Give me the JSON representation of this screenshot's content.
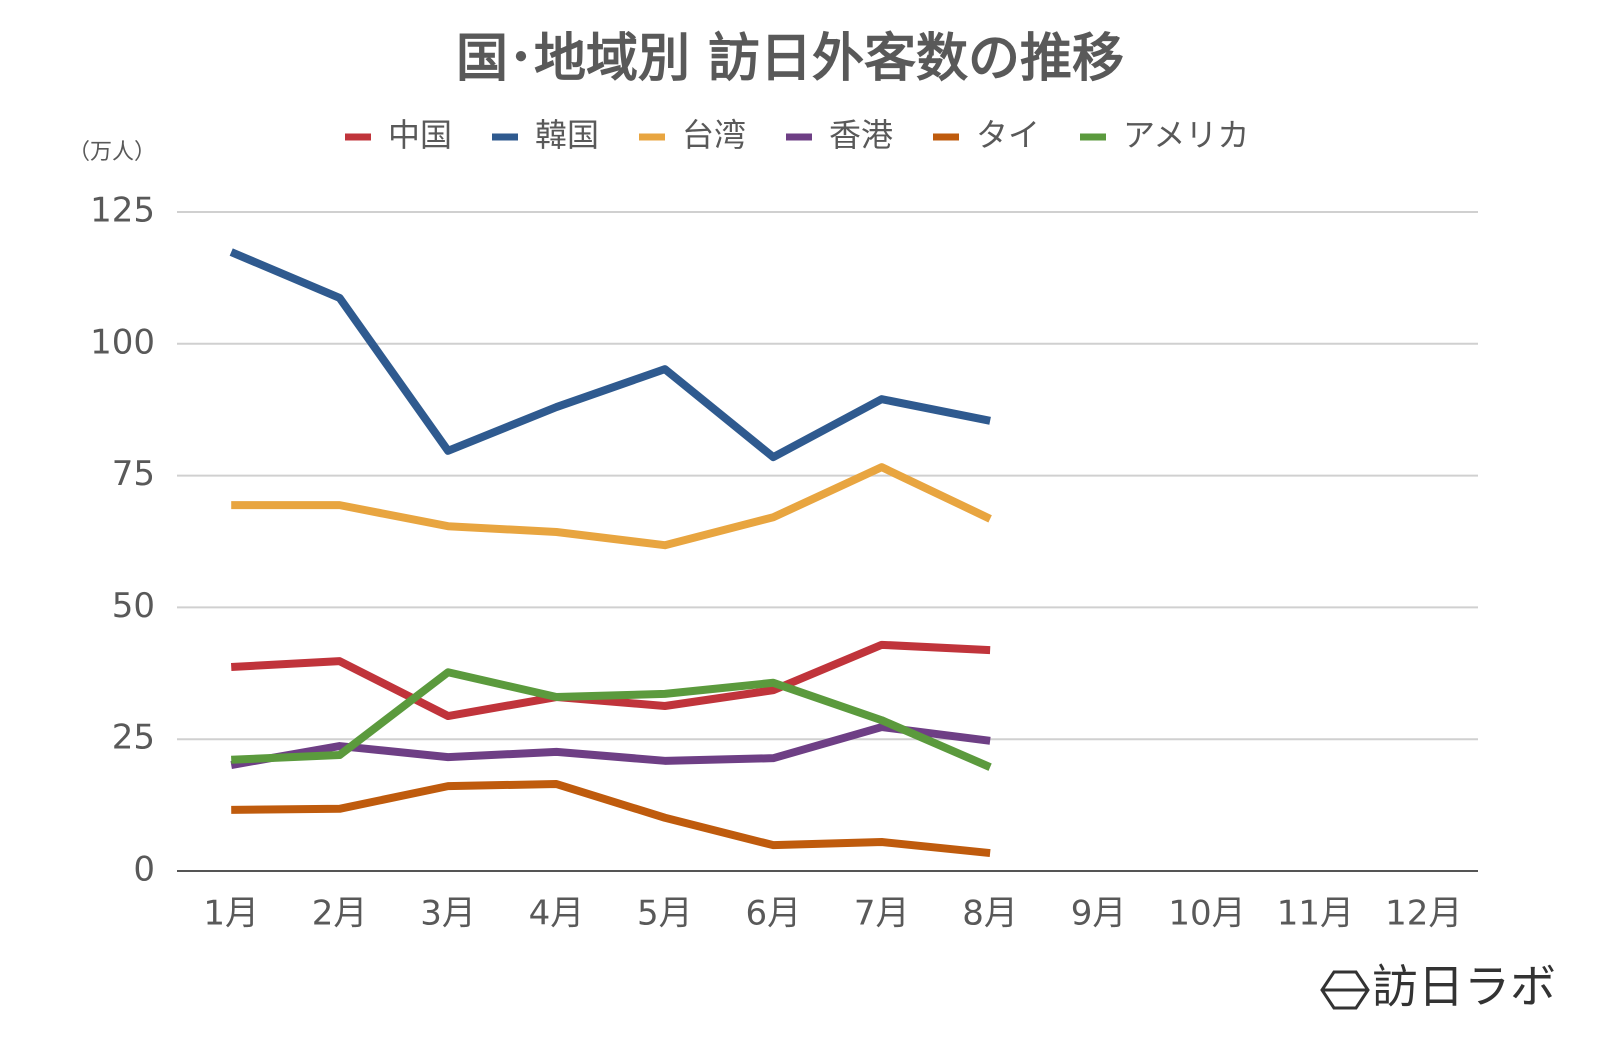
{
  "chart_data": {
    "type": "line",
    "title": "国･地域別 訪日外客数の推移",
    "y_unit_label": "（万人）",
    "watermark": "訪日ラボ",
    "categories": [
      "1月",
      "2月",
      "3月",
      "4月",
      "5月",
      "6月",
      "7月",
      "8月",
      "9月",
      "10月",
      "11月",
      "12月"
    ],
    "series": [
      {
        "name": "中国",
        "color": "#c0343b",
        "values": [
          38.7,
          39.8,
          29.4,
          33.0,
          31.3,
          34.3,
          42.9,
          41.9,
          null,
          null,
          null,
          null
        ]
      },
      {
        "name": "韓国",
        "color": "#2f5a8f",
        "values": [
          117.4,
          108.7,
          79.7,
          88.0,
          95.2,
          78.5,
          89.5,
          85.4,
          null,
          null,
          null,
          null
        ]
      },
      {
        "name": "台湾",
        "color": "#e8a540",
        "values": [
          69.4,
          69.4,
          65.4,
          64.3,
          61.8,
          67.1,
          76.6,
          66.8,
          null,
          null,
          null,
          null
        ]
      },
      {
        "name": "香港",
        "color": "#6e3f85",
        "values": [
          20.1,
          23.7,
          21.6,
          22.6,
          20.9,
          21.4,
          27.3,
          24.7,
          null,
          null,
          null,
          null
        ]
      },
      {
        "name": "タイ",
        "color": "#bf5b0d",
        "values": [
          11.6,
          11.8,
          16.1,
          16.5,
          10.1,
          4.9,
          5.5,
          3.4,
          null,
          null,
          null,
          null
        ]
      },
      {
        "name": "アメリカ",
        "color": "#5b9a3d",
        "values": [
          21.1,
          22.0,
          37.7,
          33.0,
          33.6,
          35.7,
          28.6,
          19.7,
          null,
          null,
          null,
          null
        ]
      }
    ],
    "ylim": [
      0,
      125
    ],
    "yticks": [
      0,
      25,
      50,
      75,
      100,
      125
    ],
    "grid": true,
    "legend": "top"
  }
}
